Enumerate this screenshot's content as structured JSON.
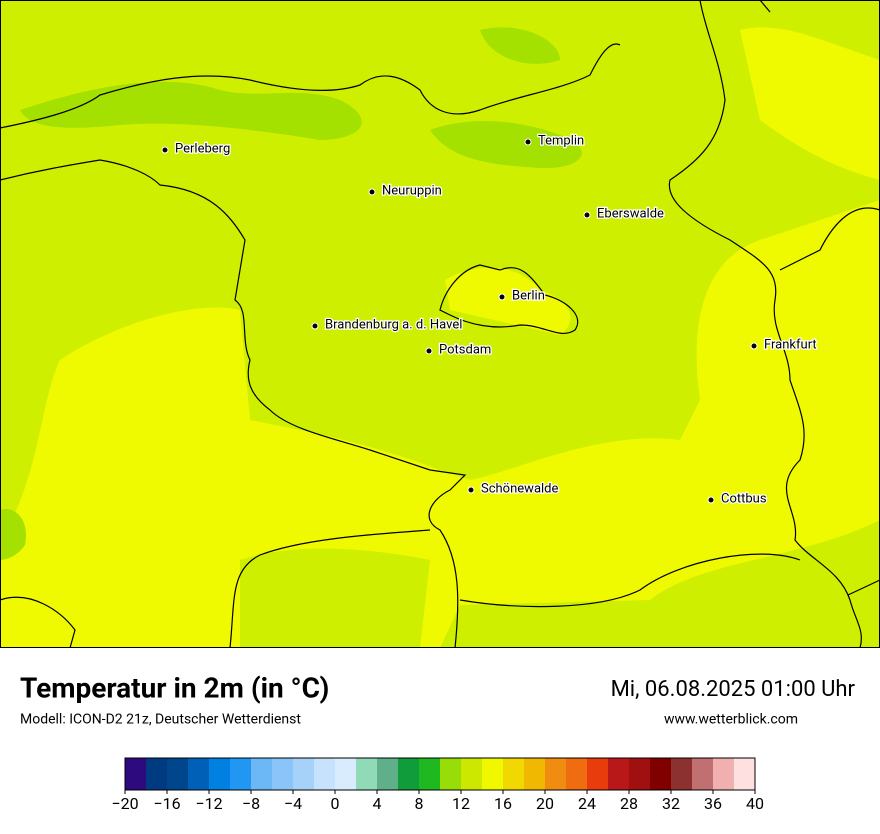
{
  "title": "Temperatur in 2m (in °C)",
  "subtitle": "Modell: ICON-D2 21z, Deutscher Wetterdienst",
  "valid_time": "Mi, 06.08.2025 01:00 Uhr",
  "website": "www.wetterblick.com",
  "cities": [
    "Perleberg",
    "Templin",
    "Neuruppin",
    "Eberswalde",
    "Berlin",
    "Brandenburg a. d. Havel",
    "Potsdam",
    "Frankfurt",
    "Schönewalde",
    "Cottbus"
  ],
  "colorbar": {
    "lim": [
      -20,
      40
    ],
    "ticks": [
      {
        "value": -20,
        "label": "−20"
      },
      {
        "value": -16,
        "label": "−16"
      },
      {
        "value": -12,
        "label": "−12"
      },
      {
        "value": -8,
        "label": "−8"
      },
      {
        "value": -4,
        "label": "−4"
      },
      0,
      4,
      8,
      12,
      16,
      20,
      24,
      28,
      32,
      36,
      40
    ],
    "colors": [
      "#2d0a7e",
      "#003a80",
      "#00468c",
      "#0060b8",
      "#0080e0",
      "#2196f3",
      "#6cb8f6",
      "#8ac4f8",
      "#a6d2fa",
      "#c6e2fc",
      "#d8ecfd",
      "#90dab8",
      "#5fb08a",
      "#109c3a",
      "#20b820",
      "#98dc08",
      "#cce800",
      "#f0f800",
      "#f0d800",
      "#f0b800",
      "#f08c10",
      "#f06c10",
      "#e83c0c",
      "#b81818",
      "#a01010",
      "#800000",
      "#8c3030",
      "#c07070",
      "#f0b0b0",
      "#ffe0e0"
    ]
  }
}
